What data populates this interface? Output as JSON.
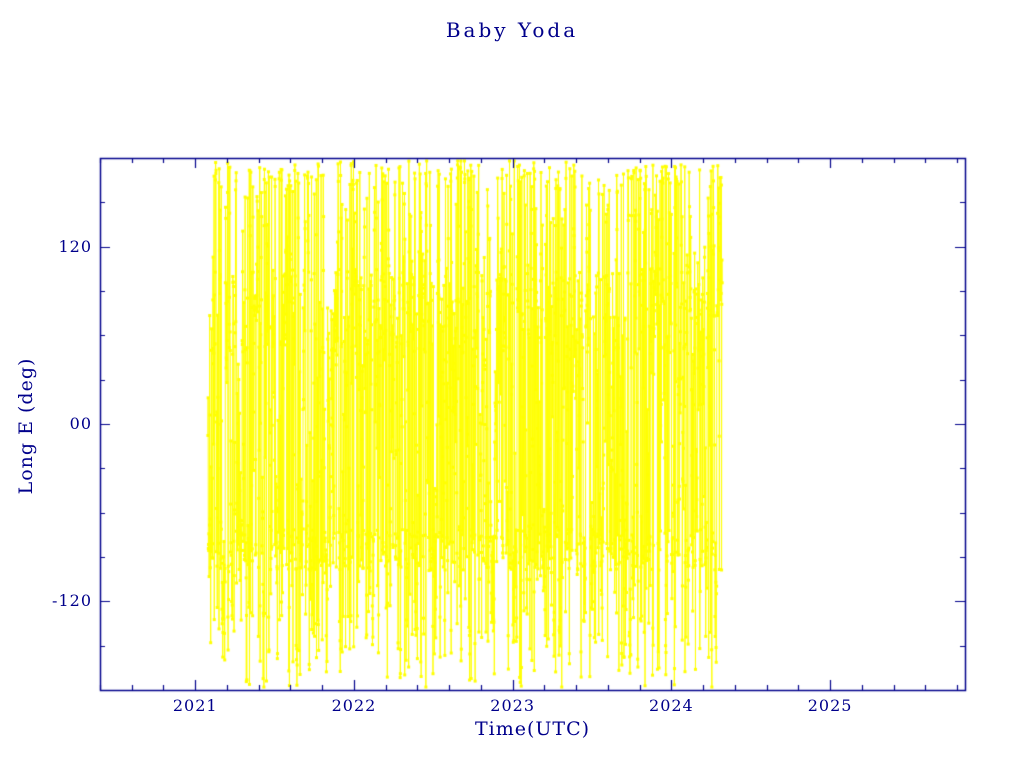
{
  "chart_data": {
    "type": "scatter",
    "title": "Baby Yoda",
    "xlabel": "Time(UTC)",
    "ylabel": "Long E (deg)",
    "xlim": [
      2020.4,
      2025.85
    ],
    "ylim": [
      -180,
      180
    ],
    "x_ticks": [
      2021,
      2022,
      2023,
      2024,
      2025
    ],
    "x_tick_labels": [
      "2021",
      "2022",
      "2023",
      "2024",
      "2025"
    ],
    "x_minor_step": 0.2,
    "y_ticks": [
      -120,
      0,
      120
    ],
    "y_tick_labels": [
      "-120",
      "00",
      "120"
    ],
    "y_minor_step": 30,
    "grid": false,
    "legend": null,
    "axis_color": "#00008b",
    "text_color": "#00008b",
    "background": "#ffffff",
    "series": [
      {
        "name": "Long E (deg)",
        "color": "#ffff00",
        "marker": "square",
        "x_start": 2021.08,
        "x_end": 2024.32,
        "y_coverage": [
          -178,
          178
        ],
        "dense_bands": [
          75,
          -85,
          168
        ],
        "band_spread": [
          28,
          14,
          8
        ],
        "band_prob": [
          0.16,
          0.16,
          0.05
        ],
        "step_scale": 150,
        "points": 2600,
        "seed": 42,
        "description": "dense vertical oscillation of longitude east, data present from 2021.08 to 2024.32, covering nearly full -180..180 range, with denser clustering near +75 deg and -85 deg"
      }
    ]
  }
}
